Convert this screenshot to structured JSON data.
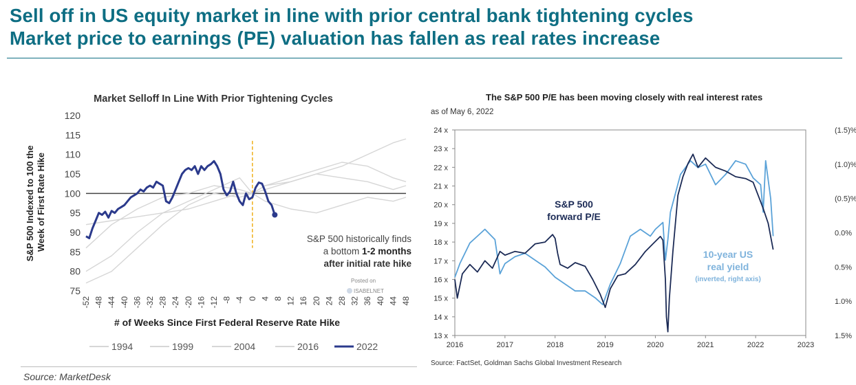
{
  "header": {
    "line1": "Sell off in US equity market in line with prior central bank tightening cycles",
    "line2": "Market price to earnings (PE) valuation has fallen as real rates increase"
  },
  "left_chart": {
    "title": "Market Selloff In Line With Prior Tightening Cycles",
    "ylabel": "S&P 500 Indexed to 100 the Week of First Rate Hike",
    "xlabel": "# of Weeks Since First Federal Reserve Rate Hike",
    "annotation": [
      "S&P 500 historically finds",
      "a bottom ",
      "1-2 months",
      "after initial rate hike"
    ],
    "watermark": [
      "Posted on",
      "ISABELNET"
    ],
    "legend": [
      "1994",
      "1999",
      "2004",
      "2016",
      "2022"
    ]
  },
  "right_chart": {
    "title": "The S&P 500 P/E has been moving closely with real interest rates",
    "subtitle": "as of May 6, 2022",
    "label_pe": [
      "S&P 500",
      "forward P/E"
    ],
    "label_yield": [
      "10-year US",
      "real yield",
      "(inverted, right axis)"
    ],
    "source": "Source: FactSet, Goldman Sachs Global Investment Research"
  },
  "source_left": "Source: MarketDesk",
  "colors": {
    "title_teal": "#0e6e83",
    "navy_2022": "#2b3a8c",
    "gray_history": "#d6d6d6",
    "orange_dash": "#f0b429",
    "pe_navy": "#1b2a55",
    "yield_light": "#5aa2d8",
    "label_light": "#7fb3dc"
  },
  "chart_data": [
    {
      "type": "line",
      "title": "Market Selloff In Line With Prior Tightening Cycles",
      "xlabel": "# of Weeks Since First Federal Reserve Rate Hike",
      "ylabel": "S&P 500 Indexed to 100 the Week of First Rate Hike",
      "xlim": [
        -52,
        48
      ],
      "ylim": [
        75,
        120
      ],
      "x_ticks": [
        -52,
        -48,
        -44,
        -40,
        -36,
        -32,
        -28,
        -24,
        -20,
        -16,
        -12,
        -8,
        -4,
        0,
        4,
        8,
        12,
        16,
        20,
        24,
        28,
        32,
        36,
        40,
        44,
        48
      ],
      "y_ticks": [
        75,
        80,
        85,
        90,
        95,
        100,
        105,
        110,
        115,
        120
      ],
      "reference_line": 100,
      "event_marker_x": 0,
      "legend_position": "bottom",
      "series": [
        {
          "name": "1994",
          "x": [
            -52,
            -44,
            -36,
            -28,
            -20,
            -12,
            -4,
            0,
            4,
            12,
            20,
            28,
            36,
            44,
            48
          ],
          "y": [
            86,
            92,
            96,
            99,
            100,
            102,
            101,
            100,
            98,
            96,
            95,
            97,
            99,
            98,
            99
          ]
        },
        {
          "name": "1999",
          "x": [
            -52,
            -44,
            -36,
            -28,
            -20,
            -12,
            -4,
            0,
            4,
            12,
            20,
            28,
            36,
            44,
            48
          ],
          "y": [
            80,
            84,
            90,
            95,
            98,
            101,
            104,
            100,
            102,
            104,
            106,
            108,
            107,
            104,
            103
          ]
        },
        {
          "name": "2004",
          "x": [
            -52,
            -44,
            -36,
            -28,
            -20,
            -12,
            -4,
            0,
            4,
            12,
            20,
            28,
            36,
            44,
            48
          ],
          "y": [
            77,
            80,
            86,
            92,
            97,
            100,
            99,
            100,
            101,
            103,
            105,
            107,
            110,
            113,
            114
          ]
        },
        {
          "name": "2016",
          "x": [
            -52,
            -44,
            -36,
            -28,
            -20,
            -12,
            -4,
            0,
            4,
            12,
            20,
            28,
            36,
            44,
            48
          ],
          "y": [
            92,
            93,
            94,
            95,
            96,
            98,
            100,
            100,
            102,
            103,
            105,
            104,
            103,
            101,
            102
          ]
        },
        {
          "name": "2022",
          "x": [
            -52,
            -51,
            -50,
            -49,
            -48,
            -47,
            -46,
            -45,
            -44,
            -43,
            -42,
            -41,
            -40,
            -39,
            -38,
            -37,
            -36,
            -35,
            -34,
            -33,
            -32,
            -31,
            -30,
            -29,
            -28,
            -27,
            -26,
            -25,
            -24,
            -23,
            -22,
            -21,
            -20,
            -19,
            -18,
            -17,
            -16,
            -15,
            -14,
            -13,
            -12,
            -11,
            -10,
            -9,
            -8,
            -7,
            -6,
            -5,
            -4,
            -3,
            -2,
            -1,
            0,
            1,
            2,
            3,
            4,
            5,
            6,
            7
          ],
          "y": [
            89,
            88.5,
            91,
            93,
            95,
            94.5,
            95.3,
            93.8,
            95.5,
            95,
            96,
            96.5,
            97,
            98,
            99,
            99.5,
            100,
            101,
            100.5,
            101.5,
            102,
            101.5,
            103,
            102.5,
            102,
            98,
            97.5,
            99,
            101,
            103,
            105,
            106,
            106.5,
            106,
            107,
            105,
            107,
            106,
            107,
            107.5,
            108.3,
            107,
            105,
            101,
            99.5,
            100.5,
            103,
            100,
            98,
            97,
            100,
            98.5,
            99,
            101.5,
            102.8,
            102.5,
            100.5,
            98,
            97,
            94.5
          ]
        }
      ]
    },
    {
      "type": "line",
      "title": "The S&P 500 P/E has been moving closely with real interest rates",
      "subtitle": "as of May 6, 2022",
      "x_ticks": [
        "2016",
        "2017",
        "2018",
        "2019",
        "2020",
        "2021",
        "2022",
        "2023"
      ],
      "xlim": [
        2016,
        2023
      ],
      "y_left_ticks": [
        "13 x",
        "14 x",
        "15 x",
        "16 x",
        "17 x",
        "18 x",
        "19 x",
        "20 x",
        "21 x",
        "22 x",
        "23 x",
        "24 x"
      ],
      "ylim_left": [
        13,
        24
      ],
      "y_right_ticks": [
        "(1.5)%",
        "(1.0)%",
        "(0.5)%",
        "0.0%",
        "0.5%",
        "1.0%",
        "1.5%"
      ],
      "ylim_right_inverted": [
        1.5,
        -1.5
      ],
      "series": [
        {
          "name": "S&P 500 forward P/E",
          "axis": "left",
          "x": [
            2016.0,
            2016.05,
            2016.15,
            2016.3,
            2016.45,
            2016.6,
            2016.75,
            2016.9,
            2017.0,
            2017.2,
            2017.4,
            2017.6,
            2017.8,
            2017.95,
            2018.0,
            2018.05,
            2018.1,
            2018.25,
            2018.4,
            2018.6,
            2018.75,
            2018.9,
            2019.0,
            2019.1,
            2019.25,
            2019.4,
            2019.6,
            2019.8,
            2019.95,
            2020.1,
            2020.15,
            2020.2,
            2020.22,
            2020.25,
            2020.28,
            2020.35,
            2020.45,
            2020.55,
            2020.65,
            2020.75,
            2020.85,
            2021.0,
            2021.2,
            2021.4,
            2021.6,
            2021.8,
            2021.95,
            2022.05,
            2022.15,
            2022.25,
            2022.35
          ],
          "y": [
            16,
            15,
            16.3,
            16.8,
            16.4,
            17,
            16.6,
            17.5,
            17.3,
            17.5,
            17.4,
            17.9,
            18.0,
            18.4,
            18.2,
            17.4,
            16.8,
            16.6,
            16.9,
            16.7,
            16.0,
            15.2,
            14.5,
            15.5,
            16.2,
            16.3,
            16.8,
            17.5,
            17.9,
            18.3,
            18.1,
            16.0,
            14.0,
            13.2,
            15.0,
            17.5,
            20.5,
            21.5,
            22.2,
            22.7,
            22.0,
            22.5,
            22.0,
            21.8,
            21.5,
            21.4,
            21.2,
            20.5,
            19.8,
            19.0,
            17.6
          ]
        },
        {
          "name": "10-year US real yield (inverted, right axis)",
          "axis": "right",
          "x": [
            2016.0,
            2016.1,
            2016.3,
            2016.45,
            2016.6,
            2016.8,
            2016.9,
            2017.0,
            2017.2,
            2017.4,
            2017.6,
            2017.8,
            2018.0,
            2018.2,
            2018.4,
            2018.6,
            2018.8,
            2018.95,
            2019.1,
            2019.3,
            2019.5,
            2019.7,
            2019.9,
            2020.0,
            2020.15,
            2020.2,
            2020.25,
            2020.3,
            2020.5,
            2020.7,
            2020.85,
            2021.0,
            2021.2,
            2021.4,
            2021.6,
            2021.8,
            2021.95,
            2022.1,
            2022.15,
            2022.2,
            2022.3,
            2022.35
          ],
          "y": [
            0.65,
            0.45,
            0.15,
            0.05,
            -0.05,
            0.1,
            0.6,
            0.45,
            0.35,
            0.3,
            0.4,
            0.5,
            0.65,
            0.75,
            0.85,
            0.85,
            0.95,
            1.05,
            0.75,
            0.45,
            0.05,
            -0.05,
            0.05,
            -0.05,
            -0.15,
            0.4,
            0.1,
            -0.3,
            -0.85,
            -1.05,
            -0.95,
            -1.0,
            -0.7,
            -0.85,
            -1.05,
            -1.0,
            -0.8,
            -0.7,
            -0.3,
            -1.05,
            -0.5,
            0.05
          ]
        }
      ]
    }
  ]
}
